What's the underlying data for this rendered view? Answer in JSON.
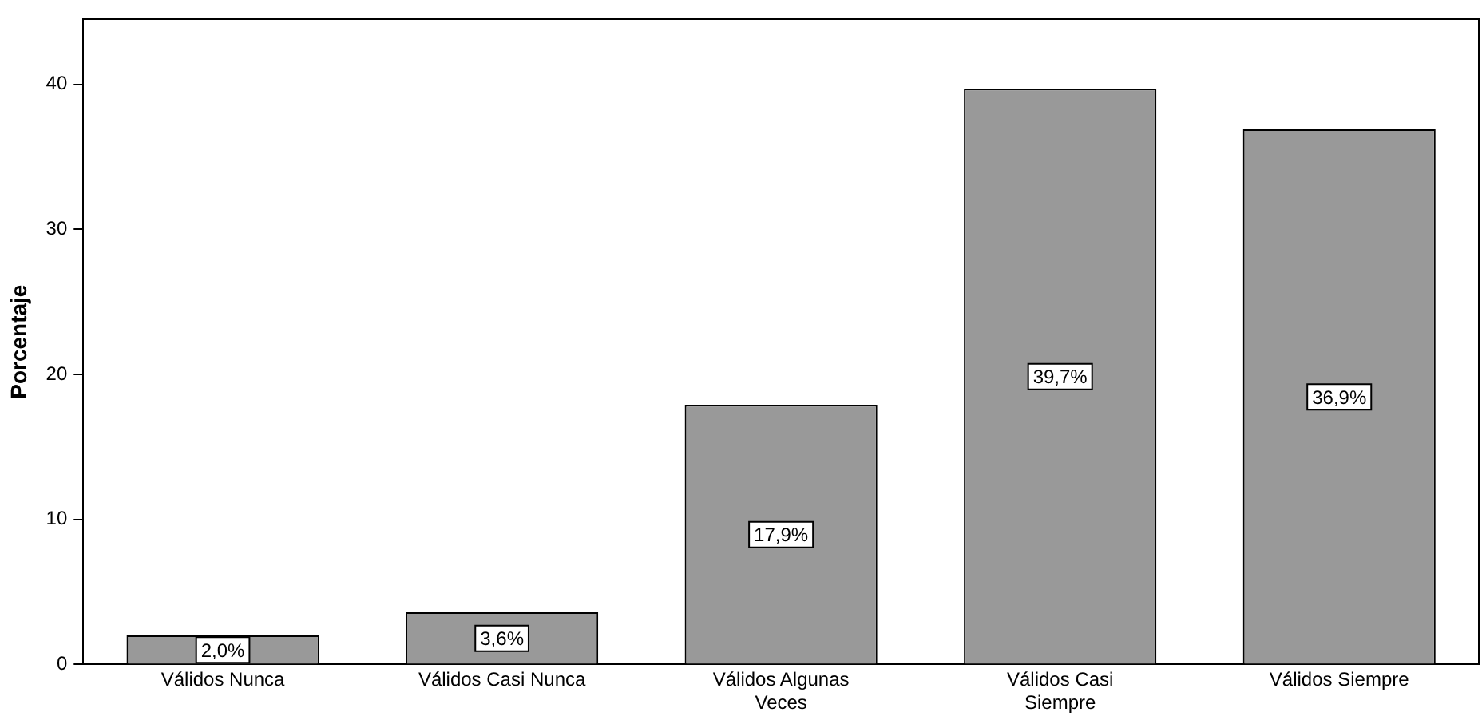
{
  "chart_data": {
    "type": "bar",
    "ylabel": "Porcentaje",
    "categories": [
      "Válidos Nunca",
      "Válidos Casi Nunca",
      "Válidos Algunas Veces",
      "Válidos Casi Siempre",
      "Válidos Siempre"
    ],
    "values": [
      2.0,
      3.6,
      17.9,
      39.7,
      36.9
    ],
    "value_labels": [
      "2,0%",
      "3,6%",
      "17,9%",
      "39,7%",
      "36,9%"
    ],
    "color": "#999999",
    "ylim": [
      0,
      44.5
    ],
    "yticks": [
      0,
      10,
      20,
      30,
      40
    ],
    "grid": false,
    "legend": false
  }
}
